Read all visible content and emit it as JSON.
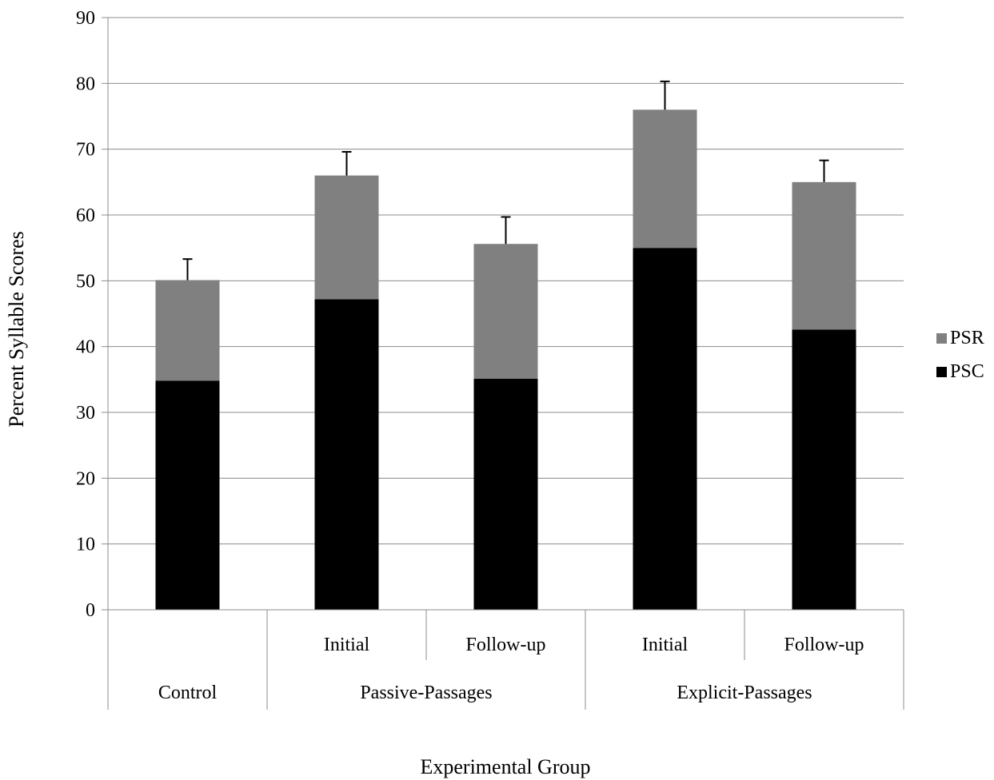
{
  "chart_data": {
    "type": "bar",
    "stacked": true,
    "xlabel": "Experimental Group",
    "ylabel": "Percent Syllable Scores",
    "ylim": [
      0,
      90
    ],
    "yticks": [
      0,
      10,
      20,
      30,
      40,
      50,
      60,
      70,
      80,
      90
    ],
    "grid": true,
    "legend_position": "right",
    "groups": [
      {
        "label": "Control",
        "subcategories": [
          ""
        ]
      },
      {
        "label": "Passive-Passages",
        "subcategories": [
          "Initial",
          "Follow-up"
        ]
      },
      {
        "label": "Explicit-Passages",
        "subcategories": [
          "Initial",
          "Follow-up"
        ]
      }
    ],
    "series": [
      {
        "name": "PSC",
        "color": "#000000",
        "values": [
          34.8,
          47.2,
          35.1,
          55.0,
          42.6
        ]
      },
      {
        "name": "PSR",
        "color": "#808080",
        "values": [
          15.3,
          18.8,
          20.5,
          21.0,
          22.4
        ]
      }
    ],
    "error_bars_upper": [
      3.2,
      3.6,
      4.1,
      4.3,
      3.3
    ],
    "legend_order": [
      "PSR",
      "PSC"
    ]
  }
}
